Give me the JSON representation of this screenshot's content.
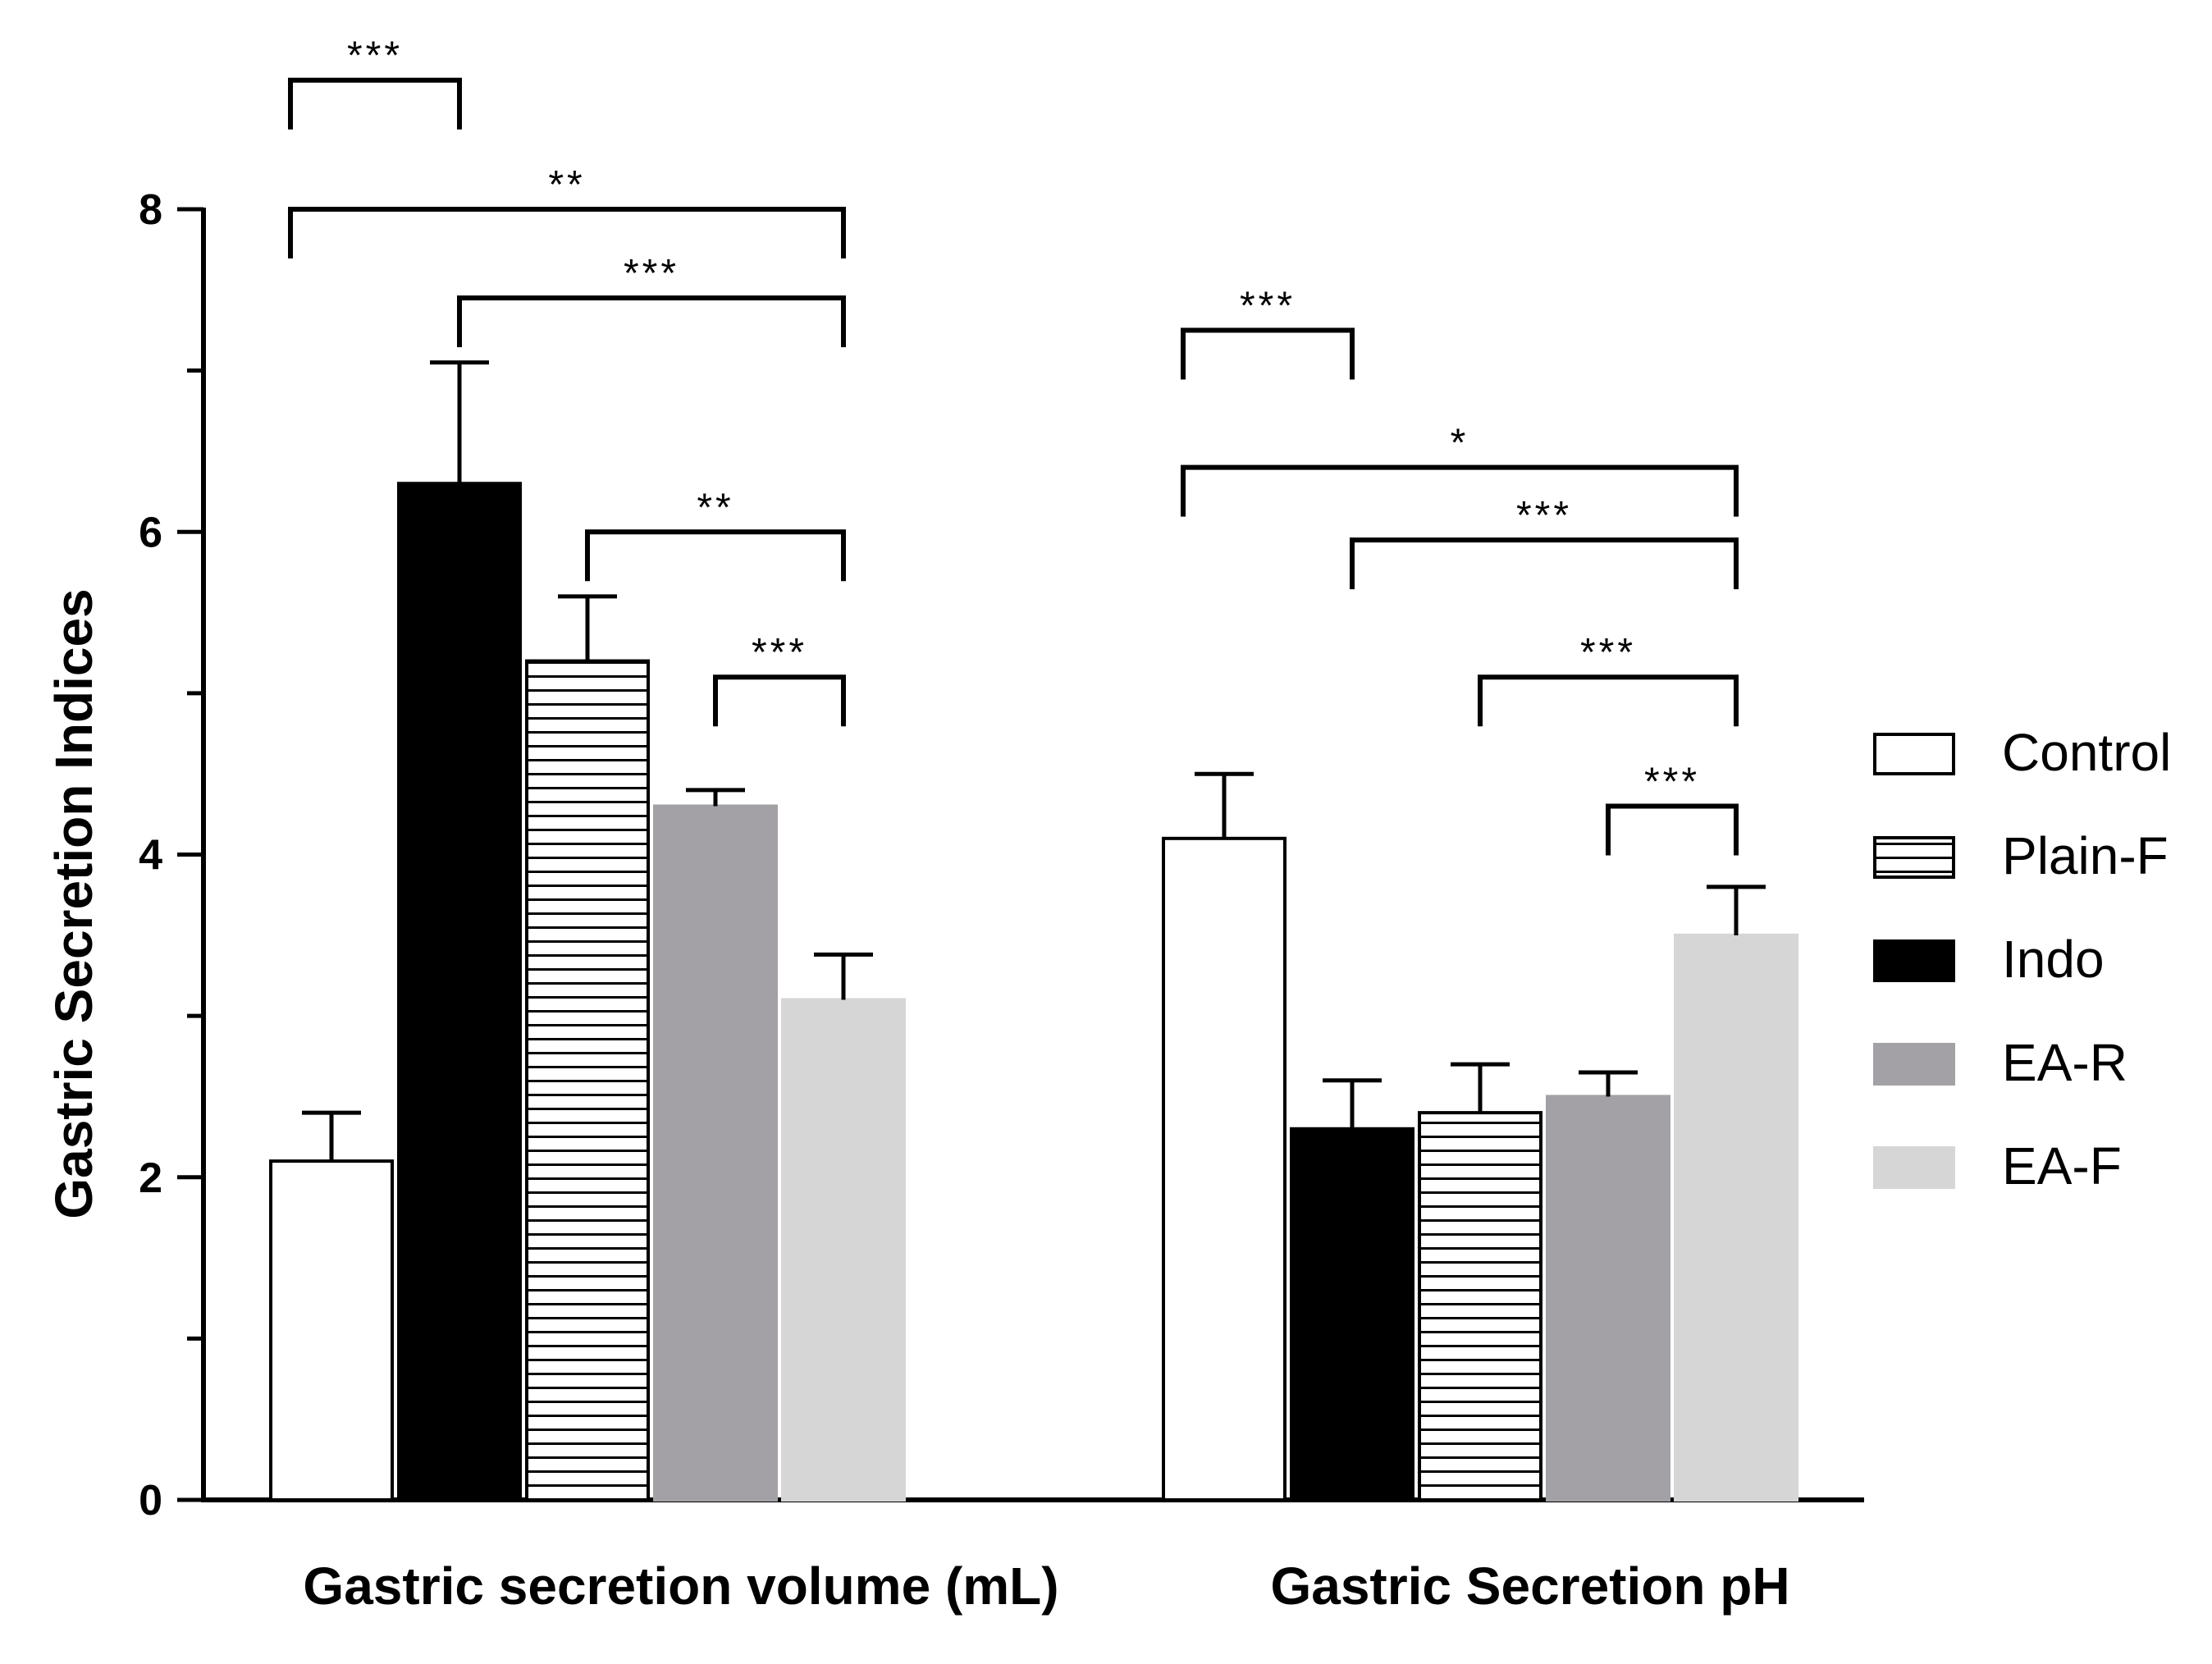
{
  "chart_data": {
    "type": "bar",
    "title": "",
    "xlabel": "",
    "ylabel": "Gastric Secretion Indices",
    "ylim": [
      0,
      8
    ],
    "yticks": [
      "0",
      "2",
      "4",
      "6",
      "8"
    ],
    "groups": [
      {
        "label": "Gastric secretion volume (mL)",
        "bars": [
          {
            "series": "Control",
            "value": 2.1,
            "error": 0.3
          },
          {
            "series": "Indo",
            "value": 6.3,
            "error": 0.75
          },
          {
            "series": "Plain-F",
            "value": 5.2,
            "error": 0.4
          },
          {
            "series": "EA-R",
            "value": 4.3,
            "error": 0.1
          },
          {
            "series": "EA-F",
            "value": 3.1,
            "error": 0.28
          }
        ],
        "comparisons": [
          {
            "from": 0,
            "to": 1,
            "label": "***",
            "level": 8.8
          },
          {
            "from": 0,
            "to": 4,
            "label": "**",
            "level": 8.0
          },
          {
            "from": 1,
            "to": 4,
            "label": "***",
            "level": 7.45
          },
          {
            "from": 2,
            "to": 4,
            "label": "**",
            "level": 6.0
          },
          {
            "from": 3,
            "to": 4,
            "label": "***",
            "level": 5.1
          }
        ]
      },
      {
        "label": "Gastric Secretion pH",
        "bars": [
          {
            "series": "Control",
            "value": 4.1,
            "error": 0.4
          },
          {
            "series": "Indo",
            "value": 2.3,
            "error": 0.3
          },
          {
            "series": "Plain-F",
            "value": 2.4,
            "error": 0.3
          },
          {
            "series": "EA-R",
            "value": 2.5,
            "error": 0.15
          },
          {
            "series": "EA-F",
            "value": 3.5,
            "error": 0.3
          }
        ],
        "comparisons": [
          {
            "from": 0,
            "to": 1,
            "label": "***",
            "level": 7.25
          },
          {
            "from": 0,
            "to": 4,
            "label": "*",
            "level": 6.4
          },
          {
            "from": 1,
            "to": 4,
            "label": "***",
            "level": 5.95
          },
          {
            "from": 2,
            "to": 4,
            "label": "***",
            "level": 5.1
          },
          {
            "from": 3,
            "to": 4,
            "label": "***",
            "level": 4.3
          }
        ]
      }
    ],
    "legend": [
      {
        "name": "Control",
        "pattern": "open"
      },
      {
        "name": "Plain-F",
        "pattern": "horizontal-stripes"
      },
      {
        "name": "Indo",
        "pattern": "solid-black"
      },
      {
        "name": "EA-R",
        "pattern": "dark-gray"
      },
      {
        "name": "EA-F",
        "pattern": "light-gray"
      }
    ],
    "legend_position": "right"
  },
  "colors": {
    "axis": "#000000",
    "Control": "#ffffff",
    "Indo": "#000000",
    "Plain-F": "#ffffff",
    "EA-R": "#a3a1a6",
    "EA-F": "#d6d6d6"
  }
}
